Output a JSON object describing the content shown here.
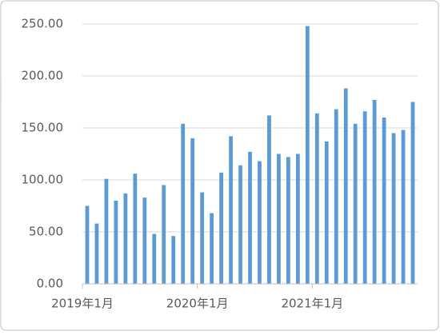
{
  "chart_data": {
    "type": "bar",
    "categories": [
      "2019年1月",
      null,
      null,
      null,
      null,
      null,
      null,
      null,
      null,
      null,
      null,
      null,
      "2020年1月",
      null,
      null,
      null,
      null,
      null,
      null,
      null,
      null,
      null,
      null,
      null,
      "2021年1月",
      null,
      null,
      null,
      null,
      null,
      null,
      null,
      null,
      null,
      null
    ],
    "values": [
      75,
      58,
      101,
      80,
      87,
      106,
      83,
      48,
      95,
      46,
      154,
      140,
      88,
      68,
      107,
      142,
      114,
      127,
      118,
      162,
      125,
      122,
      125,
      248,
      164,
      137,
      168,
      188,
      154,
      166,
      177,
      160,
      145,
      148,
      175
    ],
    "color": "#5b9bd5",
    "ylim": [
      0,
      250
    ],
    "yticks": [
      {
        "value": 0,
        "label": "0.00"
      },
      {
        "value": 50,
        "label": "50.00"
      },
      {
        "value": 100,
        "label": "100.00"
      },
      {
        "value": 150,
        "label": "150.00"
      },
      {
        "value": 200,
        "label": "200.00"
      },
      {
        "value": 250,
        "label": "250.00"
      }
    ],
    "grid": true
  }
}
